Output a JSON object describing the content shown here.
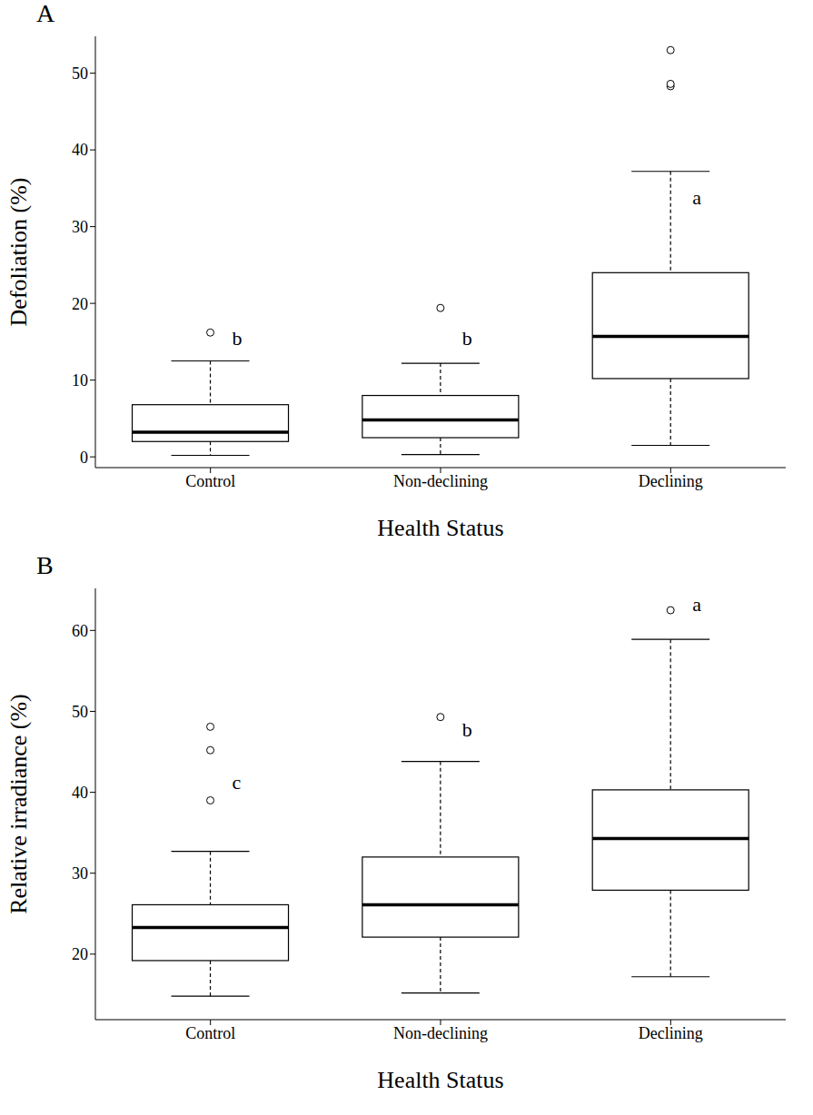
{
  "chart_data": [
    {
      "type": "box",
      "panel_label": "A",
      "x_label": "Health Status",
      "y_label": "Defoliation (%)",
      "color": "#000000",
      "categories": [
        "Control",
        "Non-declining",
        "Declining"
      ],
      "stats": [
        {
          "min": 0.2,
          "q1": 2.0,
          "median": 3.2,
          "q3": 6.8,
          "max": 12.5,
          "outliers": [
            16.2
          ]
        },
        {
          "min": 0.3,
          "q1": 2.5,
          "median": 4.8,
          "q3": 8.0,
          "max": 12.2,
          "outliers": [
            19.4
          ]
        },
        {
          "min": 1.5,
          "q1": 10.2,
          "median": 15.7,
          "q3": 24.0,
          "max": 37.2,
          "outliers": [
            48.3,
            48.6,
            53.0
          ]
        }
      ],
      "annotations": [
        {
          "text": "b",
          "category": "Control",
          "y": 15.2
        },
        {
          "text": "b",
          "category": "Non-declining",
          "y": 15.2
        },
        {
          "text": "a",
          "category": "Declining",
          "y": 33.5
        }
      ],
      "ylim": [
        -1.4,
        54.8
      ],
      "yticks": [
        0,
        10,
        20,
        30,
        40,
        50
      ]
    },
    {
      "type": "box",
      "panel_label": "B",
      "x_label": "Health Status",
      "y_label": "Relative irradiance (%)",
      "color": "#000000",
      "categories": [
        "Control",
        "Non-declining",
        "Declining"
      ],
      "stats": [
        {
          "min": 14.8,
          "q1": 19.2,
          "median": 23.3,
          "q3": 26.1,
          "max": 32.7,
          "outliers": [
            39.0,
            45.2,
            48.1
          ]
        },
        {
          "min": 15.2,
          "q1": 22.1,
          "median": 26.1,
          "q3": 32.0,
          "max": 43.8,
          "outliers": [
            49.3
          ]
        },
        {
          "min": 17.2,
          "q1": 27.9,
          "median": 34.3,
          "q3": 40.3,
          "max": 58.9,
          "outliers": [
            62.5
          ]
        }
      ],
      "annotations": [
        {
          "text": "c",
          "category": "Control",
          "y": 41.0
        },
        {
          "text": "b",
          "category": "Non-declining",
          "y": 47.5
        },
        {
          "text": "a",
          "category": "Declining",
          "y": 63.0
        }
      ],
      "ylim": [
        11.9,
        65.2
      ],
      "yticks": [
        20,
        30,
        40,
        50,
        60
      ]
    }
  ]
}
